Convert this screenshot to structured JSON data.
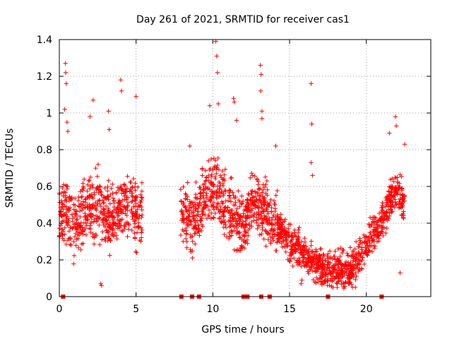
{
  "chart_data": {
    "type": "scatter",
    "title": "Day 261 of 2021, SRMTID for receiver cas1",
    "xlabel": "GPS time / hours",
    "ylabel": "SRMTID / TECUs",
    "xlim": [
      0,
      24.2
    ],
    "ylim": [
      0,
      1.4
    ],
    "x_ticks": [
      0,
      5,
      10,
      15,
      20
    ],
    "x_tick_labels": [
      "0",
      "5",
      "10",
      "15",
      "20"
    ],
    "y_ticks": [
      0,
      0.2,
      0.4,
      0.6,
      0.8,
      1.0,
      1.2,
      1.4
    ],
    "y_tick_labels": [
      "0",
      "0.2",
      "0.4",
      "0.6",
      "0.8",
      "1",
      "1.2",
      "1.4"
    ],
    "grid": true,
    "marker": "plus",
    "series_color": "#ff0000",
    "zero_markers": [
      0.25,
      7.95,
      8.65,
      9.1,
      12.0,
      12.25,
      13.15,
      13.7,
      17.5,
      21.0
    ],
    "segments": [
      {
        "start": 0.0,
        "end": 5.4,
        "base": [
          [
            0.0,
            0.42
          ],
          [
            0.5,
            0.5
          ],
          [
            1.0,
            0.38
          ],
          [
            1.5,
            0.45
          ],
          [
            2.0,
            0.48
          ],
          [
            2.5,
            0.52
          ],
          [
            3.0,
            0.45
          ],
          [
            3.5,
            0.42
          ],
          [
            4.0,
            0.48
          ],
          [
            4.5,
            0.5
          ],
          [
            5.0,
            0.45
          ],
          [
            5.4,
            0.45
          ]
        ],
        "spread": 0.12,
        "density": 110
      },
      {
        "start": 7.9,
        "end": 14.2,
        "base": [
          [
            7.9,
            0.48
          ],
          [
            8.5,
            0.42
          ],
          [
            9.0,
            0.45
          ],
          [
            9.5,
            0.55
          ],
          [
            10.0,
            0.6
          ],
          [
            10.5,
            0.55
          ],
          [
            11.0,
            0.45
          ],
          [
            11.5,
            0.4
          ],
          [
            12.0,
            0.35
          ],
          [
            12.5,
            0.5
          ],
          [
            13.0,
            0.52
          ],
          [
            13.5,
            0.45
          ],
          [
            14.0,
            0.4
          ],
          [
            14.2,
            0.38
          ]
        ],
        "spread": 0.12,
        "density": 110
      },
      {
        "start": 14.2,
        "end": 22.5,
        "base": [
          [
            14.2,
            0.38
          ],
          [
            15.0,
            0.3
          ],
          [
            16.0,
            0.22
          ],
          [
            16.5,
            0.2
          ],
          [
            17.0,
            0.15
          ],
          [
            18.0,
            0.14
          ],
          [
            19.0,
            0.15
          ],
          [
            19.5,
            0.2
          ],
          [
            20.0,
            0.28
          ],
          [
            20.5,
            0.35
          ],
          [
            21.0,
            0.42
          ],
          [
            21.5,
            0.52
          ],
          [
            22.0,
            0.58
          ],
          [
            22.5,
            0.5
          ]
        ],
        "spread": 0.07,
        "density": 110
      }
    ],
    "outliers": [
      {
        "x": 0.4,
        "y": 1.27
      },
      {
        "x": 0.42,
        "y": 1.22
      },
      {
        "x": 0.45,
        "y": 1.16
      },
      {
        "x": 0.35,
        "y": 1.02
      },
      {
        "x": 0.5,
        "y": 0.95
      },
      {
        "x": 0.55,
        "y": 0.9
      },
      {
        "x": 2.0,
        "y": 0.98
      },
      {
        "x": 2.2,
        "y": 1.07
      },
      {
        "x": 3.2,
        "y": 1.01
      },
      {
        "x": 4.0,
        "y": 1.18
      },
      {
        "x": 4.05,
        "y": 1.12
      },
      {
        "x": 5.0,
        "y": 1.09
      },
      {
        "x": 3.25,
        "y": 0.91
      },
      {
        "x": 9.8,
        "y": 1.04
      },
      {
        "x": 10.2,
        "y": 1.39
      },
      {
        "x": 10.25,
        "y": 1.31
      },
      {
        "x": 10.3,
        "y": 1.22
      },
      {
        "x": 10.35,
        "y": 1.05
      },
      {
        "x": 11.35,
        "y": 1.08
      },
      {
        "x": 11.4,
        "y": 1.06
      },
      {
        "x": 11.55,
        "y": 0.96
      },
      {
        "x": 13.1,
        "y": 1.26
      },
      {
        "x": 13.15,
        "y": 1.21
      },
      {
        "x": 13.12,
        "y": 1.12
      },
      {
        "x": 13.2,
        "y": 1.01
      },
      {
        "x": 13.2,
        "y": 0.97
      },
      {
        "x": 16.4,
        "y": 1.16
      },
      {
        "x": 16.45,
        "y": 0.94
      },
      {
        "x": 16.4,
        "y": 0.73
      },
      {
        "x": 16.5,
        "y": 0.66
      },
      {
        "x": 21.5,
        "y": 0.89
      },
      {
        "x": 21.9,
        "y": 0.98
      },
      {
        "x": 21.95,
        "y": 0.93
      },
      {
        "x": 22.5,
        "y": 0.83
      },
      {
        "x": 8.5,
        "y": 0.82
      },
      {
        "x": 14.1,
        "y": 0.82
      },
      {
        "x": 2.7,
        "y": 0.07
      },
      {
        "x": 2.75,
        "y": 0.06
      },
      {
        "x": 15.8,
        "y": 0.09
      },
      {
        "x": 15.75,
        "y": 0.07
      },
      {
        "x": 17.6,
        "y": 0.06
      },
      {
        "x": 18.1,
        "y": 0.05
      },
      {
        "x": 18.6,
        "y": 0.07
      },
      {
        "x": 22.2,
        "y": 0.13
      }
    ]
  }
}
